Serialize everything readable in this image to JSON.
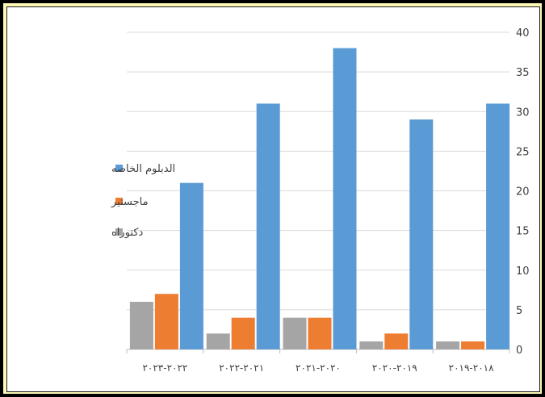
{
  "chart_data": {
    "type": "bar",
    "categories": [
      "٢٠١٨-٢٠١٩",
      "٢٠١٩-٢٠٢٠",
      "٢٠٢٠-٢٠٢١",
      "٢٠٢١-٢٠٢٢",
      "٢٠٢٢-٢٠٢٣"
    ],
    "category_order": "right-to-left",
    "series": [
      {
        "name": "الدبلوم الخاصه",
        "color": "#5b9bd5",
        "values": [
          31,
          29,
          38,
          31,
          21
        ]
      },
      {
        "name": "ماجستير",
        "color": "#ed7d31",
        "values": [
          1,
          2,
          4,
          4,
          7
        ]
      },
      {
        "name": "دكتوراه",
        "color": "#a5a5a5",
        "values": [
          1,
          1,
          4,
          2,
          6
        ]
      }
    ],
    "ylim": [
      0,
      40
    ],
    "yticks": [
      0,
      5,
      10,
      15,
      20,
      25,
      30,
      35,
      40
    ],
    "y_axis_side": "right",
    "grid": true,
    "legend_position": "left",
    "title": "",
    "xlabel": "",
    "ylabel": ""
  },
  "frame_colors": {
    "outer_border": "#000000",
    "accent_band": "#fdf8b4",
    "plot_background": "#ffffff",
    "gridline": "#d9d9d9",
    "axis": "#bfbfbf",
    "text": "#404040"
  }
}
